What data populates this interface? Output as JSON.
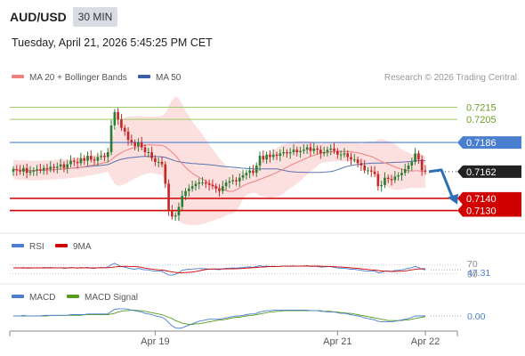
{
  "header": {
    "pair": "AUD/USD",
    "timeframe": "30 MIN",
    "datetime": "Tuesday, April 21, 2026 5:45:25 PM CET"
  },
  "legend": {
    "ma20": "MA 20 + Bollinger Bands",
    "ma50": "MA 50",
    "credit": "Research © 2026 Trading Central"
  },
  "colors": {
    "up": "#2e7d32",
    "down": "#c62828",
    "ma20": "#f08080",
    "ma50": "#3b5fa8",
    "band": "#fbd9d9",
    "resistance": "#9ccc65",
    "pivot": "#4a7fd0",
    "support": "#d00000",
    "last": "#222222",
    "rsi": "#4a7fd0",
    "rsi_ma": "#d00000",
    "macd": "#4a7fd0",
    "macd_signal": "#559d1b"
  },
  "chart_data": {
    "type": "candlestick",
    "x_labels": [
      "Apr 19",
      "Apr 21",
      "Apr 22"
    ],
    "y_range": [
      0.7115,
      0.723
    ],
    "levels": [
      {
        "label": "0.7215",
        "value": 0.7215,
        "kind": "resistance"
      },
      {
        "label": "0.7205",
        "value": 0.7205,
        "kind": "resistance"
      },
      {
        "label": "0.7186",
        "value": 0.7186,
        "kind": "pivot"
      },
      {
        "label": "0.7162",
        "value": 0.7162,
        "kind": "last"
      },
      {
        "label": "0.7140",
        "value": 0.714,
        "kind": "support"
      },
      {
        "label": "0.7130",
        "value": 0.713,
        "kind": "support"
      }
    ],
    "forecast": {
      "from": 0.7162,
      "to": 0.7132
    },
    "closes": [
      0.7164,
      0.7163,
      0.7162,
      0.7165,
      0.7161,
      0.7162,
      0.7163,
      0.7164,
      0.7163,
      0.7165,
      0.7164,
      0.7166,
      0.7165,
      0.7166,
      0.7168,
      0.7165,
      0.7168,
      0.7171,
      0.717,
      0.7169,
      0.7173,
      0.7171,
      0.7175,
      0.7172,
      0.7171,
      0.7174,
      0.7175,
      0.7174,
      0.7178,
      0.72,
      0.7211,
      0.7205,
      0.7198,
      0.7195,
      0.7188,
      0.7186,
      0.7183,
      0.7186,
      0.7182,
      0.7178,
      0.7178,
      0.7173,
      0.717,
      0.717,
      0.7168,
      0.7152,
      0.713,
      0.7125,
      0.7126,
      0.7133,
      0.7142,
      0.7146,
      0.7148,
      0.715,
      0.7152,
      0.7153,
      0.7153,
      0.7152,
      0.7151,
      0.715,
      0.7148,
      0.7146,
      0.715,
      0.7153,
      0.7154,
      0.7155,
      0.7154,
      0.7157,
      0.7159,
      0.7161,
      0.7163,
      0.7161,
      0.7167,
      0.7175,
      0.7172,
      0.7176,
      0.7174,
      0.7176,
      0.7175,
      0.7177,
      0.7178,
      0.7177,
      0.7178,
      0.718,
      0.7178,
      0.7179,
      0.718,
      0.7182,
      0.7179,
      0.7181,
      0.718,
      0.7177,
      0.7178,
      0.718,
      0.7181,
      0.7179,
      0.7176,
      0.7176,
      0.7177,
      0.7174,
      0.7172,
      0.7172,
      0.7169,
      0.7167,
      0.7163,
      0.7163,
      0.7162,
      0.716,
      0.715,
      0.7151,
      0.7157,
      0.7156,
      0.7155,
      0.7158,
      0.7159,
      0.7161,
      0.7164,
      0.7167,
      0.717,
      0.7177,
      0.7172,
      0.7163,
      0.7162
    ],
    "rsi": {
      "label": "RSI",
      "ma_label": "9MA",
      "value_label": "47.31",
      "levels": [
        "70",
        "30"
      ],
      "levels_values": [
        70,
        30
      ],
      "values": [
        56,
        57,
        56,
        58,
        55,
        55,
        56,
        57,
        56,
        58,
        57,
        58,
        56,
        56,
        57,
        54,
        56,
        58,
        57,
        55,
        58,
        56,
        59,
        55,
        54,
        57,
        58,
        57,
        60,
        72,
        78,
        70,
        62,
        60,
        55,
        52,
        50,
        54,
        50,
        47,
        47,
        43,
        41,
        41,
        40,
        31,
        22,
        22,
        26,
        35,
        45,
        48,
        50,
        51,
        52,
        53,
        53,
        52,
        51,
        51,
        49,
        48,
        52,
        54,
        55,
        56,
        55,
        57,
        58,
        60,
        61,
        59,
        63,
        67,
        63,
        65,
        63,
        64,
        63,
        64,
        65,
        64,
        65,
        66,
        64,
        65,
        65,
        67,
        63,
        64,
        63,
        60,
        61,
        62,
        62,
        59,
        56,
        55,
        55,
        52,
        50,
        50,
        47,
        45,
        42,
        42,
        42,
        41,
        33,
        34,
        42,
        41,
        40,
        44,
        45,
        47,
        51,
        55,
        57,
        64,
        58,
        50,
        47
      ]
    },
    "macd": {
      "label": "MACD",
      "signal_label": "MACD Signal",
      "value_label": "0.00",
      "values": [
        0.0,
        0.0,
        0.0,
        0.0001,
        0.0,
        0.0,
        0.0,
        0.0,
        0.0,
        0.0001,
        0.0001,
        0.0001,
        0.0001,
        0.0001,
        0.0001,
        0.0001,
        0.0001,
        0.0002,
        0.0002,
        0.0002,
        0.0002,
        0.0002,
        0.0003,
        0.0003,
        0.0003,
        0.0003,
        0.0003,
        0.0003,
        0.0003,
        0.0007,
        0.001,
        0.0011,
        0.0011,
        0.0011,
        0.001,
        0.0009,
        0.0008,
        0.0007,
        0.0006,
        0.0004,
        0.0003,
        0.0002,
        0.0,
        -0.0001,
        -0.0002,
        -0.0005,
        -0.001,
        -0.0015,
        -0.0018,
        -0.0019,
        -0.0018,
        -0.0016,
        -0.0014,
        -0.0012,
        -0.001,
        -0.0008,
        -0.0007,
        -0.0006,
        -0.0005,
        -0.0005,
        -0.0005,
        -0.0005,
        -0.0004,
        -0.0003,
        -0.0002,
        -0.0001,
        0.0,
        0.0,
        0.0001,
        0.0002,
        0.0003,
        0.0003,
        0.0004,
        0.0006,
        0.0007,
        0.0008,
        0.0008,
        0.0009,
        0.0009,
        0.0009,
        0.0009,
        0.0009,
        0.0009,
        0.0009,
        0.0009,
        0.0009,
        0.0009,
        0.0009,
        0.0008,
        0.0008,
        0.0008,
        0.0007,
        0.0007,
        0.0006,
        0.0006,
        0.0006,
        0.0005,
        0.0004,
        0.0004,
        0.0003,
        0.0002,
        0.0001,
        0.0,
        -0.0001,
        -0.0003,
        -0.0004,
        -0.0005,
        -0.0006,
        -0.0008,
        -0.0009,
        -0.0009,
        -0.0009,
        -0.0009,
        -0.0008,
        -0.0007,
        -0.0006,
        -0.0005,
        -0.0004,
        -0.0002,
        0.0,
        0.0,
        0.0,
        0.0
      ],
      "signal": [
        0.0,
        0.0,
        0.0,
        0.0,
        0.0,
        0.0,
        0.0,
        0.0,
        0.0,
        0.0,
        0.0,
        0.0001,
        0.0001,
        0.0001,
        0.0001,
        0.0001,
        0.0001,
        0.0001,
        0.0001,
        0.0001,
        0.0001,
        0.0002,
        0.0002,
        0.0002,
        0.0002,
        0.0002,
        0.0002,
        0.0002,
        0.0002,
        0.0003,
        0.0004,
        0.0006,
        0.0007,
        0.0008,
        0.0008,
        0.0009,
        0.0009,
        0.0008,
        0.0008,
        0.0007,
        0.0006,
        0.0005,
        0.0004,
        0.0003,
        0.0002,
        0.0,
        -0.0002,
        -0.0004,
        -0.0007,
        -0.0009,
        -0.0011,
        -0.0012,
        -0.0013,
        -0.0013,
        -0.0012,
        -0.0012,
        -0.0011,
        -0.001,
        -0.0009,
        -0.0008,
        -0.0007,
        -0.0006,
        -0.0006,
        -0.0005,
        -0.0004,
        -0.0003,
        -0.0002,
        -0.0002,
        -0.0001,
        0.0,
        0.0001,
        0.0001,
        0.0002,
        0.0003,
        0.0004,
        0.0005,
        0.0006,
        0.0006,
        0.0007,
        0.0007,
        0.0008,
        0.0008,
        0.0008,
        0.0008,
        0.0008,
        0.0008,
        0.0008,
        0.0008,
        0.0008,
        0.0008,
        0.0008,
        0.0008,
        0.0007,
        0.0007,
        0.0007,
        0.0006,
        0.0006,
        0.0005,
        0.0005,
        0.0004,
        0.0004,
        0.0003,
        0.0002,
        0.0001,
        0.0,
        -0.0001,
        -0.0002,
        -0.0003,
        -0.0004,
        -0.0005,
        -0.0006,
        -0.0007,
        -0.0007,
        -0.0007,
        -0.0007,
        -0.0007,
        -0.0006,
        -0.0006,
        -0.0005,
        -0.0004,
        -0.0003,
        -0.0002,
        -0.0001
      ]
    }
  }
}
